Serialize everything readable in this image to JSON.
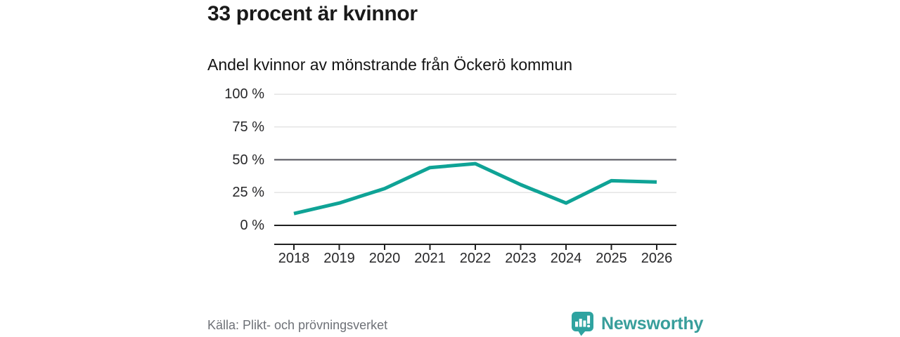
{
  "header": {
    "title": "33 procent är kvinnor",
    "subtitle": "Andel kvinnor av mönstrande från Öckerö kommun"
  },
  "footer": {
    "source": "Källa: Plikt- och prövningsverket",
    "brand": "Newsworthy"
  },
  "colors": {
    "accent_line": "#0fa396",
    "brand_teal": "#389e9b",
    "brand_icon_teal": "#2ea3a0",
    "grid_light": "#e4e4e4",
    "grid_highlight": "#52525a",
    "axis": "#202020",
    "title_text": "#1a1a1a",
    "source_gray": "#6e7177"
  },
  "chart_data": {
    "type": "line",
    "title": "33 procent är kvinnor",
    "subtitle": "Andel kvinnor av mönstrande från Öckerö kommun",
    "categories": [
      "2018",
      "2019",
      "2020",
      "2021",
      "2022",
      "2023",
      "2024",
      "2025",
      "2026"
    ],
    "series": [
      {
        "name": "Andel kvinnor av mönstrande",
        "values": [
          9,
          17,
          28,
          44,
          47,
          31,
          17,
          34,
          33
        ]
      }
    ],
    "unit": "%",
    "ylim": [
      0,
      100
    ],
    "yticks": [
      0,
      25,
      50,
      75,
      100
    ],
    "ytick_suffix": " %",
    "grid": "horizontal",
    "highlight_gridlines": [
      50
    ],
    "baseline_gridline": 0,
    "legend": "none",
    "line_width": 5,
    "source": "Källa: Plikt- och prövningsverket"
  }
}
